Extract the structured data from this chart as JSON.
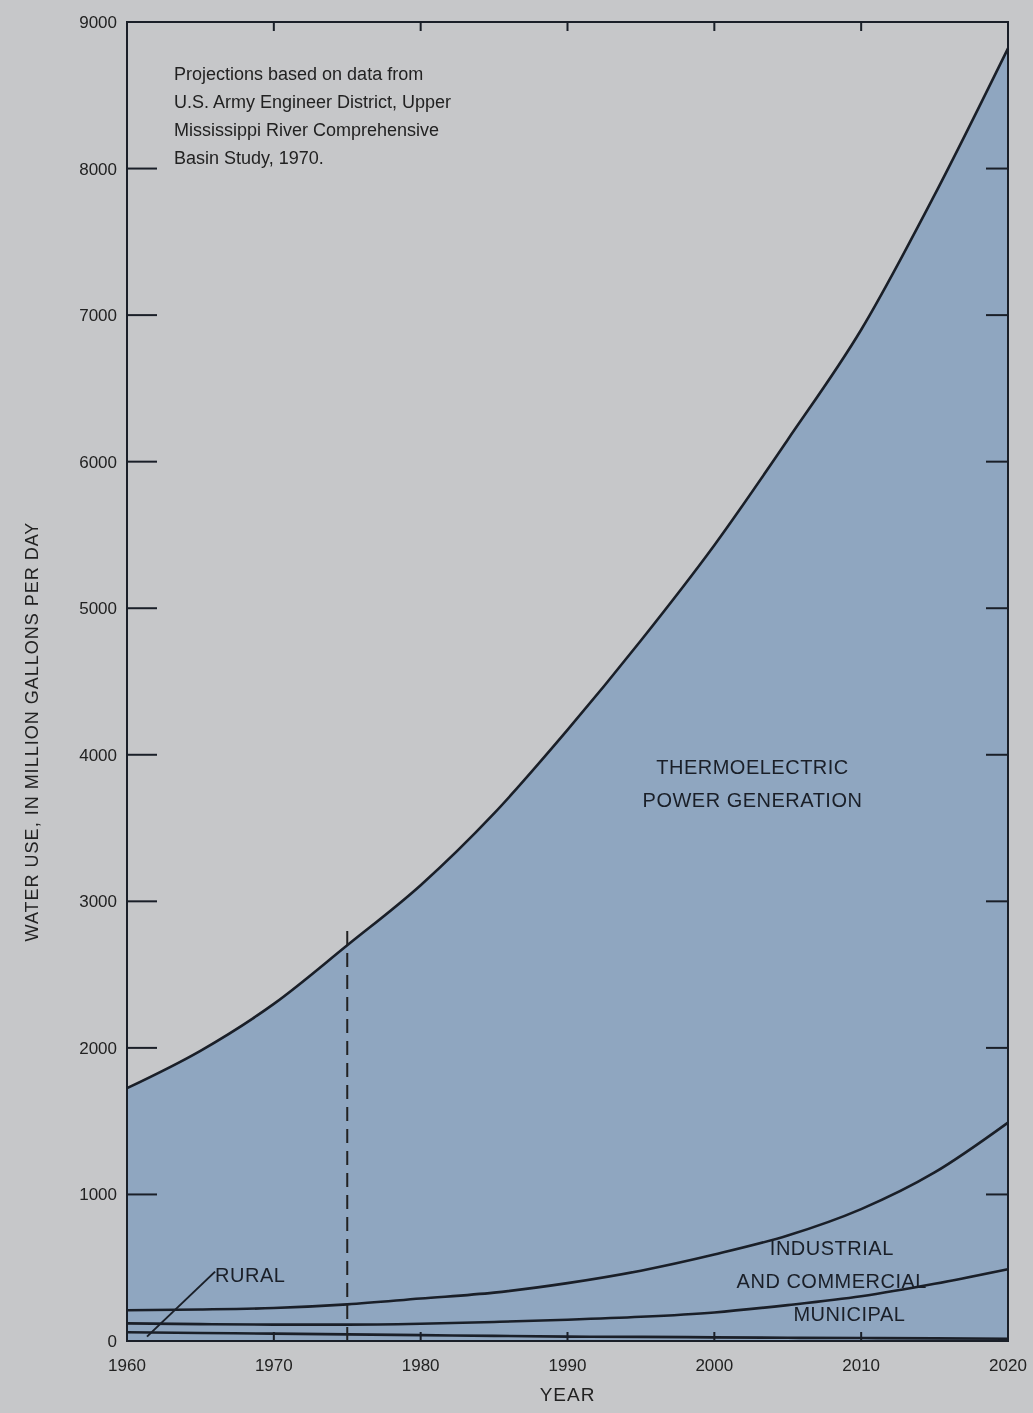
{
  "chart_data": {
    "type": "area",
    "stacked": true,
    "xlabel": "YEAR",
    "ylabel": "WATER USE, IN MILLION GALLONS PER DAY",
    "x": [
      1960,
      1965,
      1970,
      1975,
      1980,
      1985,
      1990,
      1995,
      2000,
      2005,
      2010,
      2015,
      2020
    ],
    "series": [
      {
        "name": "RURAL",
        "color": "#8fa6c0",
        "values": [
          60,
          55,
          50,
          45,
          40,
          35,
          30,
          28,
          25,
          22,
          20,
          18,
          15
        ]
      },
      {
        "name": "MUNICIPAL",
        "color": "#8fa6c0",
        "values": [
          60,
          60,
          62,
          67,
          78,
          95,
          115,
          137,
          170,
          223,
          285,
          372,
          475
        ]
      },
      {
        "name": "INDUSTRIAL AND COMMERCIAL",
        "color": "#8fa6c0",
        "values": [
          90,
          100,
          113,
          138,
          172,
          200,
          250,
          315,
          395,
          475,
          595,
          760,
          1000
        ]
      },
      {
        "name": "THERMOELECTRIC POWER GENERATION",
        "color": "#8fa6c0",
        "values": [
          1515,
          1765,
          2075,
          2450,
          2820,
          3270,
          3775,
          4300,
          4840,
          5430,
          6000,
          6670,
          7330
        ]
      }
    ],
    "xlim": [
      1960,
      2020
    ],
    "xticks": [
      1960,
      1970,
      1980,
      1990,
      2000,
      2010,
      2020
    ],
    "ylim": [
      0,
      9000
    ],
    "yticks": [
      0,
      1000,
      2000,
      3000,
      4000,
      5000,
      6000,
      7000,
      8000,
      9000
    ],
    "ref_lines": [
      {
        "axis": "x",
        "value": 1975,
        "line_style": "dashed",
        "color": "#222222"
      }
    ],
    "annotations": [
      "Projections based on data from U.S. Army Engineer District, Upper Mississippi River Comprehensive Basin Study, 1970."
    ],
    "grid": false,
    "legend": false
  }
}
